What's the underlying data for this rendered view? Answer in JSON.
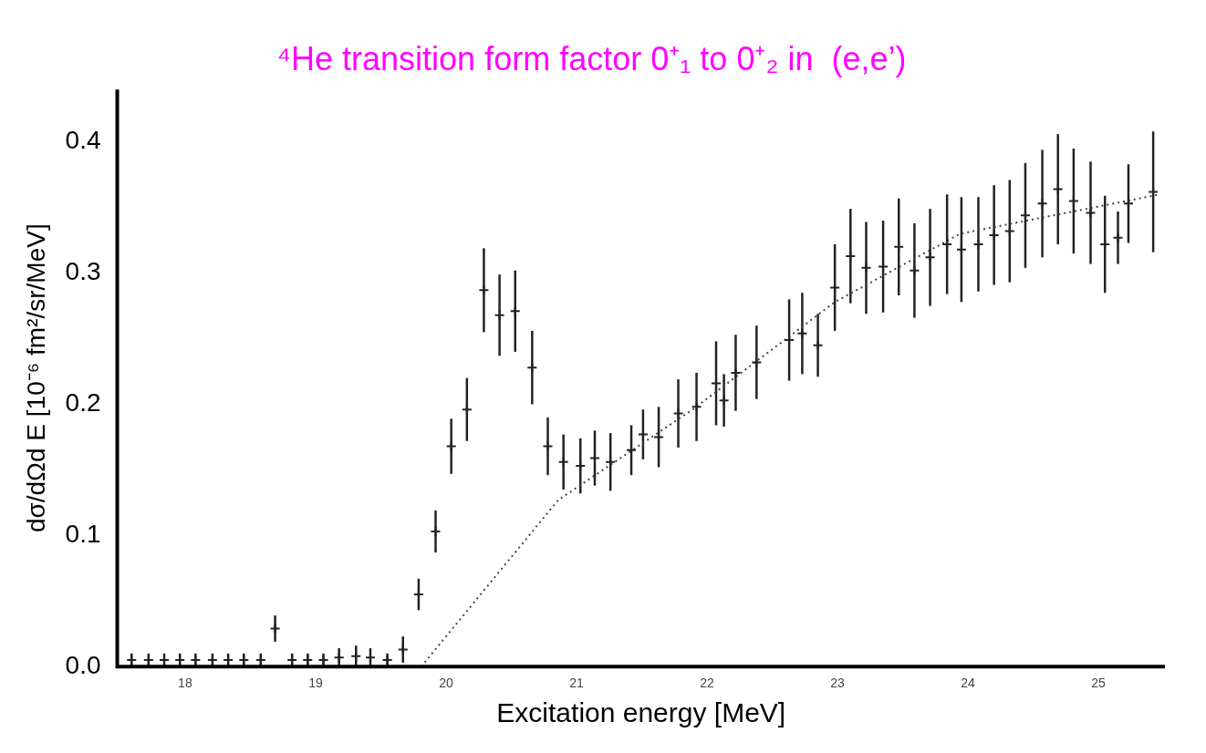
{
  "chart_data": {
    "type": "scatter",
    "title": "⁴He transition form factor 0⁺₁ to 0⁺₂ in  (e,e’)",
    "xlabel": "Excitation energy [MeV]",
    "ylabel": "dσ/dΩd E [10⁻⁶ fm²/sr/MeV]",
    "xlim": [
      17.48,
      25.51
    ],
    "xticks": [
      18,
      19,
      20,
      21,
      22,
      23,
      24,
      25
    ],
    "ylim": [
      0,
      0.44
    ],
    "yticks": [
      {
        "value": 0,
        "label": "0.0"
      },
      0.1,
      0.2,
      0.3,
      0.4
    ],
    "grid": false,
    "legend": false,
    "series": [
      {
        "color": "#222222",
        "marker": "cross",
        "x": [
          17.59,
          17.72,
          17.84,
          17.96,
          18.08,
          18.21,
          18.33,
          18.45,
          18.58,
          18.69,
          18.82,
          18.94,
          19.06,
          19.18,
          19.31,
          19.42,
          19.55,
          19.67,
          19.79,
          19.92,
          20.04,
          20.16,
          20.29,
          20.41,
          20.53,
          20.66,
          20.78,
          20.9,
          21.03,
          21.14,
          21.26,
          21.42,
          21.51,
          21.63,
          21.78,
          21.92,
          22.07,
          22.13,
          22.22,
          22.38,
          22.63,
          22.73,
          22.85,
          22.98,
          23.1,
          23.22,
          23.35,
          23.47,
          23.59,
          23.71,
          23.84,
          23.95,
          24.08,
          24.2,
          24.32,
          24.44,
          24.57,
          24.69,
          24.81,
          24.94,
          25.05,
          25.15,
          25.23,
          25.42
        ],
        "values": [
          0.005,
          0.005,
          0.005,
          0.005,
          0.005,
          0.005,
          0.005,
          0.005,
          0.005,
          0.029,
          0.005,
          0.005,
          0.005,
          0.007,
          0.008,
          0.007,
          0.005,
          0.013,
          0.055,
          0.103,
          0.168,
          0.196,
          0.287,
          0.268,
          0.271,
          0.228,
          0.168,
          0.156,
          0.153,
          0.159,
          0.156,
          0.165,
          0.177,
          0.175,
          0.193,
          0.198,
          0.216,
          0.203,
          0.224,
          0.232,
          0.249,
          0.254,
          0.245,
          0.289,
          0.313,
          0.304,
          0.305,
          0.32,
          0.302,
          0.312,
          0.322,
          0.318,
          0.322,
          0.329,
          0.332,
          0.344,
          0.353,
          0.364,
          0.355,
          0.346,
          0.322,
          0.327,
          0.353,
          0.362
        ],
        "errors": [
          0.005,
          0.005,
          0.005,
          0.005,
          0.005,
          0.005,
          0.005,
          0.005,
          0.005,
          0.01,
          0.005,
          0.005,
          0.005,
          0.007,
          0.008,
          0.007,
          0.005,
          0.01,
          0.012,
          0.016,
          0.021,
          0.024,
          0.032,
          0.031,
          0.031,
          0.028,
          0.022,
          0.021,
          0.021,
          0.021,
          0.022,
          0.019,
          0.019,
          0.023,
          0.026,
          0.026,
          0.032,
          0.02,
          0.029,
          0.028,
          0.031,
          0.031,
          0.024,
          0.033,
          0.036,
          0.035,
          0.035,
          0.037,
          0.036,
          0.037,
          0.038,
          0.04,
          0.036,
          0.038,
          0.039,
          0.04,
          0.041,
          0.042,
          0.04,
          0.039,
          0.037,
          0.02,
          0.03,
          0.046
        ]
      },
      {
        "type": "line",
        "color": "#444444",
        "line_style": "dotted",
        "marker": "none",
        "x": [
          19.81,
          20.86,
          21.89,
          22.98,
          23.94,
          24.96,
          25.47
        ],
        "values": [
          0,
          0.127,
          0.196,
          0.278,
          0.33,
          0.35,
          0.36
        ]
      }
    ]
  }
}
